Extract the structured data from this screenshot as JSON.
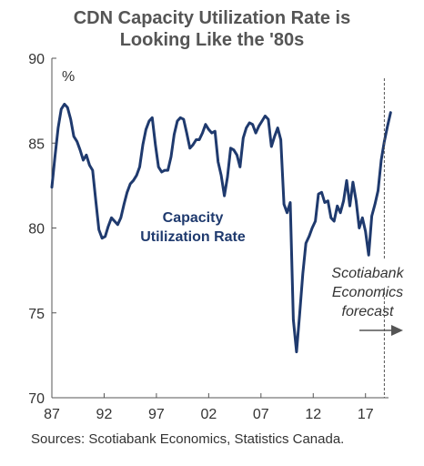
{
  "chart_data": {
    "type": "line",
    "title_lines": [
      "CDN Capacity Utilization Rate is",
      "Looking Like the '80s"
    ],
    "unit_label": "%",
    "ylim": [
      70,
      90
    ],
    "yticks": [
      70,
      75,
      80,
      85,
      90
    ],
    "xlim": [
      1987.0,
      2019.2
    ],
    "xticks": [
      {
        "value": 1987,
        "label": "87"
      },
      {
        "value": 1992,
        "label": "92"
      },
      {
        "value": 1997,
        "label": "97"
      },
      {
        "value": 2002,
        "label": "02"
      },
      {
        "value": 2007,
        "label": "07"
      },
      {
        "value": 2012,
        "label": "12"
      },
      {
        "value": 2017,
        "label": "17"
      }
    ],
    "grid": false,
    "series": [
      {
        "name_lines": [
          "Capacity",
          "Utilization Rate"
        ],
        "color": "#1f3a6e",
        "points": [
          [
            1987.0,
            82.4
          ],
          [
            1987.3,
            84.2
          ],
          [
            1987.6,
            85.9
          ],
          [
            1987.9,
            87.0
          ],
          [
            1988.2,
            87.3
          ],
          [
            1988.5,
            87.1
          ],
          [
            1988.8,
            86.4
          ],
          [
            1989.1,
            85.4
          ],
          [
            1989.4,
            85.1
          ],
          [
            1989.7,
            84.6
          ],
          [
            1990.0,
            84.0
          ],
          [
            1990.3,
            84.3
          ],
          [
            1990.6,
            83.7
          ],
          [
            1990.9,
            83.4
          ],
          [
            1991.2,
            81.6
          ],
          [
            1991.5,
            79.9
          ],
          [
            1991.8,
            79.4
          ],
          [
            1992.1,
            79.5
          ],
          [
            1992.4,
            80.1
          ],
          [
            1992.7,
            80.6
          ],
          [
            1993.0,
            80.4
          ],
          [
            1993.3,
            80.2
          ],
          [
            1993.6,
            80.6
          ],
          [
            1993.9,
            81.4
          ],
          [
            1994.2,
            82.1
          ],
          [
            1994.5,
            82.6
          ],
          [
            1994.8,
            82.8
          ],
          [
            1995.1,
            83.1
          ],
          [
            1995.4,
            83.6
          ],
          [
            1995.7,
            84.9
          ],
          [
            1996.0,
            85.8
          ],
          [
            1996.3,
            86.3
          ],
          [
            1996.6,
            86.5
          ],
          [
            1996.9,
            84.9
          ],
          [
            1997.2,
            83.6
          ],
          [
            1997.5,
            83.3
          ],
          [
            1997.8,
            83.4
          ],
          [
            1998.1,
            83.4
          ],
          [
            1998.4,
            84.2
          ],
          [
            1998.7,
            85.5
          ],
          [
            1999.0,
            86.3
          ],
          [
            1999.3,
            86.5
          ],
          [
            1999.6,
            86.4
          ],
          [
            1999.9,
            85.6
          ],
          [
            2000.2,
            84.7
          ],
          [
            2000.5,
            84.9
          ],
          [
            2000.8,
            85.2
          ],
          [
            2001.1,
            85.2
          ],
          [
            2001.4,
            85.6
          ],
          [
            2001.7,
            86.1
          ],
          [
            2002.0,
            85.8
          ],
          [
            2002.3,
            85.6
          ],
          [
            2002.6,
            85.7
          ],
          [
            2002.9,
            83.9
          ],
          [
            2003.2,
            83.1
          ],
          [
            2003.5,
            81.9
          ],
          [
            2003.8,
            83.0
          ],
          [
            2004.1,
            84.7
          ],
          [
            2004.4,
            84.6
          ],
          [
            2004.7,
            84.3
          ],
          [
            2005.0,
            83.6
          ],
          [
            2005.3,
            85.3
          ],
          [
            2005.6,
            85.9
          ],
          [
            2005.9,
            86.2
          ],
          [
            2006.2,
            86.1
          ],
          [
            2006.5,
            85.6
          ],
          [
            2006.8,
            86.0
          ],
          [
            2007.1,
            86.3
          ],
          [
            2007.4,
            86.6
          ],
          [
            2007.7,
            86.4
          ],
          [
            2008.0,
            84.8
          ],
          [
            2008.3,
            85.4
          ],
          [
            2008.6,
            85.9
          ],
          [
            2008.9,
            85.2
          ],
          [
            2009.2,
            81.4
          ],
          [
            2009.5,
            80.9
          ],
          [
            2009.8,
            81.5
          ],
          [
            2010.1,
            74.6
          ],
          [
            2010.4,
            72.7
          ],
          [
            2010.7,
            74.9
          ],
          [
            2011.0,
            77.3
          ],
          [
            2011.3,
            79.1
          ],
          [
            2011.6,
            79.5
          ],
          [
            2011.9,
            80.0
          ],
          [
            2012.2,
            80.4
          ],
          [
            2012.5,
            82.0
          ],
          [
            2012.8,
            82.1
          ],
          [
            2013.1,
            81.5
          ],
          [
            2013.4,
            81.6
          ],
          [
            2013.7,
            80.6
          ],
          [
            2014.0,
            80.4
          ],
          [
            2014.3,
            81.3
          ],
          [
            2014.6,
            80.9
          ],
          [
            2014.9,
            81.6
          ],
          [
            2015.2,
            82.8
          ],
          [
            2015.5,
            81.3
          ],
          [
            2015.8,
            82.7
          ],
          [
            2016.1,
            81.6
          ],
          [
            2016.4,
            80.0
          ],
          [
            2016.7,
            80.6
          ],
          [
            2017.0,
            79.8
          ],
          [
            2017.3,
            78.4
          ],
          [
            2017.6,
            80.7
          ],
          [
            2017.9,
            81.4
          ],
          [
            2018.2,
            82.2
          ],
          [
            2018.5,
            84.0
          ],
          [
            2018.8,
            85.1
          ],
          [
            2019.1,
            86.0
          ],
          [
            2019.4,
            86.8
          ]
        ]
      }
    ],
    "annotations": {
      "forecast_x": 2018.8,
      "forecast_lines": [
        "Scotiabank",
        "Economics",
        "forecast"
      ]
    },
    "source_text": "Sources: Scotiabank Economics, Statistics Canada."
  }
}
